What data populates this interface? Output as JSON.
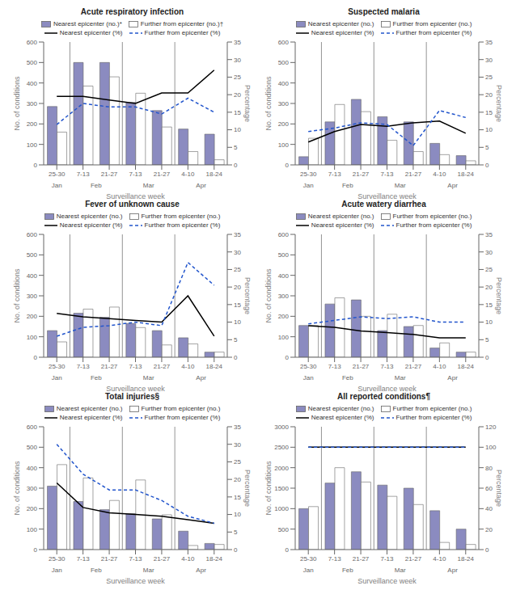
{
  "chart_data": [
    {
      "type": "bar",
      "title": "Acute respiratory infection",
      "categories": [
        "25-30",
        "7-13",
        "21-27",
        "7-13",
        "21-27",
        "4-10",
        "18-24"
      ],
      "x_label": "Surveillance week",
      "y_label": "No. of conditions",
      "y2_label": "Percentage",
      "annotations": [
        {
          "text": "Jan",
          "x": 0
        },
        {
          "text": "Feb",
          "x": 1.5
        },
        {
          "text": "Mar",
          "x": 3.5
        },
        {
          "text": "Apr",
          "x": 5.5
        }
      ],
      "separators": [
        0.5,
        2.5,
        4.5
      ],
      "series": [
        {
          "name": "Nearest epicenter (no.)*",
          "type": "bar",
          "color": "#8b8bc0",
          "values": [
            285,
            500,
            500,
            305,
            265,
            175,
            150
          ]
        },
        {
          "name": "Further from epicenter (no.)†",
          "type": "bar",
          "color": "#ffffff",
          "values": [
            160,
            385,
            430,
            350,
            185,
            65,
            25
          ]
        },
        {
          "name": "Nearest epicenter (%)",
          "type": "line",
          "axis": "y2",
          "color": "#000000",
          "line_style": "solid",
          "marker": "none",
          "values": [
            19.5,
            19.5,
            18.5,
            17.5,
            20.5,
            20.5,
            27.0
          ]
        },
        {
          "name": "Further from epicenter (%)",
          "type": "line",
          "axis": "y2",
          "color": "#2255cc",
          "line_style": "dashed",
          "marker": "none",
          "values": [
            11.5,
            17.5,
            16.5,
            16.5,
            14.5,
            19.0,
            15.0
          ]
        }
      ],
      "ylim": [
        0,
        600
      ],
      "yticks": [
        0,
        100,
        200,
        300,
        400,
        500,
        600
      ],
      "y2lim": [
        0,
        35
      ],
      "y2ticks": [
        0,
        5,
        10,
        15,
        20,
        25,
        30,
        35
      ],
      "legend": "top",
      "grid": false
    },
    {
      "type": "bar",
      "title": "Suspected malaria",
      "categories": [
        "25-30",
        "7-13",
        "21-27",
        "7-13",
        "21-27",
        "4-10",
        "18-24"
      ],
      "x_label": "Surveillance week",
      "y_label": "No. of conditions",
      "y2_label": "Percentage",
      "annotations": [
        {
          "text": "Jan",
          "x": 0
        },
        {
          "text": "Feb",
          "x": 1.5
        },
        {
          "text": "Mar",
          "x": 3.5
        },
        {
          "text": "Apr",
          "x": 5.5
        }
      ],
      "separators": [
        0.5,
        2.5,
        4.5
      ],
      "series": [
        {
          "name": "Nearest epicenter (no.)",
          "type": "bar",
          "color": "#8b8bc0",
          "values": [
            40,
            210,
            320,
            235,
            210,
            105,
            45
          ]
        },
        {
          "name": "Further from epicenter (no.)",
          "type": "bar",
          "color": "#ffffff",
          "values": [
            130,
            295,
            260,
            120,
            65,
            50,
            20
          ]
        },
        {
          "name": "Nearest epicenter (%)",
          "type": "line",
          "axis": "y2",
          "color": "#000000",
          "line_style": "solid",
          "marker": "none",
          "values": [
            6.5,
            9.5,
            11.5,
            11.0,
            12.0,
            12.5,
            9.0
          ]
        },
        {
          "name": "Further from epicenter (%)",
          "type": "line",
          "axis": "y2",
          "color": "#2255cc",
          "line_style": "dashed",
          "marker": "none",
          "values": [
            9.5,
            10.5,
            12.0,
            11.5,
            5.5,
            15.5,
            13.5
          ]
        }
      ],
      "ylim": [
        0,
        600
      ],
      "yticks": [
        0,
        100,
        200,
        300,
        400,
        500,
        600
      ],
      "y2lim": [
        0,
        35
      ],
      "y2ticks": [
        0,
        5,
        10,
        15,
        20,
        25,
        30,
        35
      ],
      "legend": "top",
      "grid": false
    },
    {
      "type": "bar",
      "title": "Fever of unknown cause",
      "categories": [
        "25-30",
        "7-13",
        "21-27",
        "7-13",
        "21-27",
        "4-10",
        "18-24"
      ],
      "x_label": "Surveillance week",
      "y_label": "No. of conditions",
      "y2_label": "Percentage",
      "annotations": [
        {
          "text": "Jan",
          "x": 0
        },
        {
          "text": "Feb",
          "x": 1.5
        },
        {
          "text": "Mar",
          "x": 3.5
        },
        {
          "text": "Apr",
          "x": 5.5
        }
      ],
      "separators": [
        0.5,
        2.5,
        4.5
      ],
      "series": [
        {
          "name": "Nearest epicenter (no.)",
          "type": "bar",
          "color": "#8b8bc0",
          "values": [
            130,
            215,
            195,
            165,
            130,
            95,
            25
          ]
        },
        {
          "name": "Further from epicenter (no.)",
          "type": "bar",
          "color": "#ffffff",
          "values": [
            75,
            235,
            245,
            145,
            60,
            65,
            25
          ]
        },
        {
          "name": "Nearest epicenter (%)",
          "type": "line",
          "axis": "y2",
          "color": "#000000",
          "line_style": "solid",
          "marker": "none",
          "values": [
            12.5,
            11.5,
            11.0,
            10.5,
            10.0,
            17.5,
            6.0
          ]
        },
        {
          "name": "Further from epicenter (%)",
          "type": "line",
          "axis": "y2",
          "color": "#2255cc",
          "line_style": "dashed",
          "marker": "none",
          "values": [
            6.0,
            8.5,
            9.0,
            10.0,
            9.0,
            27.0,
            20.5
          ]
        }
      ],
      "ylim": [
        0,
        600
      ],
      "yticks": [
        0,
        100,
        200,
        300,
        400,
        500,
        600
      ],
      "y2lim": [
        0,
        35
      ],
      "y2ticks": [
        0,
        5,
        10,
        15,
        20,
        25,
        30,
        35
      ],
      "legend": "top",
      "grid": false
    },
    {
      "type": "bar",
      "title": "Acute watery diarrhea",
      "categories": [
        "25-30",
        "7-13",
        "21-27",
        "7-13",
        "21-27",
        "4-10",
        "18-24"
      ],
      "x_label": "Surveillance week",
      "y_label": "No. of conditions",
      "y2_label": "Percentage",
      "annotations": [
        {
          "text": "Jan",
          "x": 0
        },
        {
          "text": "Feb",
          "x": 1.5
        },
        {
          "text": "Mar",
          "x": 3.5
        },
        {
          "text": "Apr",
          "x": 5.5
        }
      ],
      "separators": [
        0.5,
        2.5,
        4.5
      ],
      "series": [
        {
          "name": "Nearest epicenter (no.)",
          "type": "bar",
          "color": "#8b8bc0",
          "values": [
            155,
            260,
            280,
            130,
            150,
            45,
            25
          ]
        },
        {
          "name": "Further from epicenter (no.)",
          "type": "bar",
          "color": "#ffffff",
          "values": [
            155,
            290,
            200,
            210,
            155,
            70,
            25
          ]
        },
        {
          "name": "Nearest epicenter (%)",
          "type": "line",
          "axis": "y2",
          "color": "#000000",
          "line_style": "solid",
          "marker": "none",
          "values": [
            9.0,
            8.5,
            7.5,
            7.0,
            6.5,
            5.5,
            5.5
          ]
        },
        {
          "name": "Further from epicenter (%)",
          "type": "line",
          "axis": "y2",
          "color": "#2255cc",
          "line_style": "dashed",
          "marker": "none",
          "values": [
            9.5,
            10.5,
            11.5,
            11.0,
            11.5,
            10.0,
            10.0
          ]
        }
      ],
      "ylim": [
        0,
        600
      ],
      "yticks": [
        0,
        100,
        200,
        300,
        400,
        500,
        600
      ],
      "y2lim": [
        0,
        35
      ],
      "y2ticks": [
        0,
        5,
        10,
        15,
        20,
        25,
        30,
        35
      ],
      "legend": "top",
      "grid": false
    },
    {
      "type": "bar",
      "title": "Total injuries§",
      "categories": [
        "25-30",
        "7-13",
        "21-27",
        "7-13",
        "21-27",
        "4-10",
        "18-24"
      ],
      "x_label": "Surveillance week",
      "y_label": "No. of conditions",
      "y2_label": "Percentage",
      "annotations": [
        {
          "text": "Jan",
          "x": 0
        },
        {
          "text": "Feb",
          "x": 1.5
        },
        {
          "text": "Mar",
          "x": 3.5
        },
        {
          "text": "Apr",
          "x": 5.5
        }
      ],
      "separators": [
        0.5,
        2.5,
        4.5
      ],
      "series": [
        {
          "name": "Nearest epicenter (no.)",
          "type": "bar",
          "color": "#8b8bc0",
          "values": [
            310,
            235,
            195,
            175,
            150,
            90,
            30
          ]
        },
        {
          "name": "Further from epicenter (no.)",
          "type": "bar",
          "color": "#ffffff",
          "values": [
            415,
            350,
            240,
            340,
            170,
            20,
            25
          ]
        },
        {
          "name": "Nearest epicenter (%)",
          "type": "line",
          "axis": "y2",
          "color": "#000000",
          "line_style": "solid",
          "marker": "none",
          "values": [
            19.0,
            12.0,
            10.5,
            10.0,
            9.5,
            8.5,
            7.5
          ]
        },
        {
          "name": "Further from epicenter (%)",
          "type": "line",
          "axis": "y2",
          "color": "#2255cc",
          "line_style": "dashed",
          "marker": "none",
          "values": [
            30.0,
            21.5,
            17.0,
            17.0,
            14.0,
            9.5,
            7.5
          ]
        }
      ],
      "ylim": [
        0,
        600
      ],
      "yticks": [
        0,
        100,
        200,
        300,
        400,
        500,
        600
      ],
      "y2lim": [
        0,
        35
      ],
      "y2ticks": [
        0,
        5,
        10,
        15,
        20,
        25,
        30,
        35
      ],
      "legend": "top",
      "grid": false
    },
    {
      "type": "bar",
      "title": "All reported conditions¶",
      "categories": [
        "25-30",
        "7-13",
        "21-27",
        "7-13",
        "21-27",
        "4-10",
        "18-24"
      ],
      "x_label": "Surveillance week",
      "y_label": "No. of conditions",
      "y2_label": "Percentage",
      "annotations": [
        {
          "text": "Jan",
          "x": 0
        },
        {
          "text": "Feb",
          "x": 1.5
        },
        {
          "text": "Mar",
          "x": 3.5
        },
        {
          "text": "Apr",
          "x": 5.5
        }
      ],
      "separators": [
        0.5,
        2.5,
        4.5
      ],
      "series": [
        {
          "name": "Nearest epicenter (no.)",
          "type": "bar",
          "color": "#8b8bc0",
          "values": [
            1000,
            1625,
            1900,
            1575,
            1500,
            950,
            500
          ]
        },
        {
          "name": "Further from epicenter (no.)",
          "type": "bar",
          "color": "#ffffff",
          "values": [
            1050,
            2000,
            1650,
            1300,
            1100,
            175,
            125
          ]
        },
        {
          "name": "Nearest epicenter (%)",
          "type": "line",
          "axis": "y2",
          "color": "#000000",
          "line_style": "solid",
          "marker": "none",
          "values": [
            100.0,
            100.0,
            100.0,
            100.0,
            100.0,
            100.0,
            100.0
          ]
        },
        {
          "name": "Further from epicenter (%)",
          "type": "line",
          "axis": "y2",
          "color": "#2255cc",
          "line_style": "dashed",
          "marker": "none",
          "values": [
            100.0,
            100.0,
            100.0,
            100.0,
            100.0,
            100.0,
            100.0
          ]
        }
      ],
      "ylim": [
        0,
        3000
      ],
      "yticks": [
        0,
        500,
        1000,
        1500,
        2000,
        2500,
        3000
      ],
      "y2lim": [
        0,
        120
      ],
      "y2ticks": [
        0,
        20,
        40,
        60,
        80,
        100,
        120
      ],
      "legend": "top",
      "grid": false
    }
  ]
}
